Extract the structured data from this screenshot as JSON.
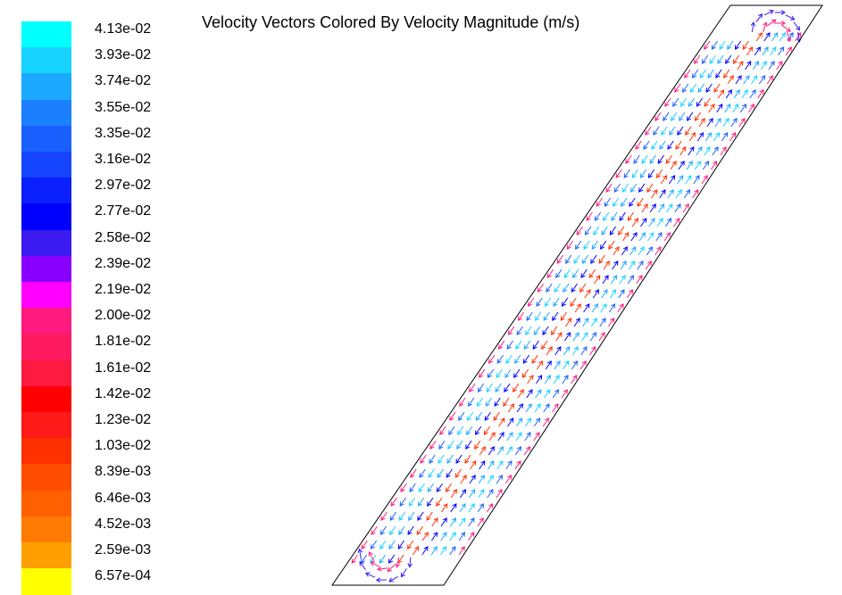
{
  "title": "Velocity Vectors Colored By Velocity Magnitude (m/s)",
  "colormap": {
    "labels": [
      "4.13e-02",
      "3.93e-02",
      "3.74e-02",
      "3.55e-02",
      "3.35e-02",
      "3.16e-02",
      "2.97e-02",
      "2.77e-02",
      "2.58e-02",
      "2.39e-02",
      "2.19e-02",
      "2.00e-02",
      "1.81e-02",
      "1.61e-02",
      "1.42e-02",
      "1.23e-02",
      "1.03e-02",
      "8.39e-03",
      "6.46e-03",
      "4.52e-03",
      "2.59e-03",
      "6.57e-04"
    ],
    "colors": [
      "#00ffff",
      "#17d3ff",
      "#1aa9ff",
      "#1a80ff",
      "#1a60ff",
      "#1545ff",
      "#0a20ff",
      "#0000ff",
      "#3a1af0",
      "#8a00ff",
      "#ff00ff",
      "#ff1a80",
      "#ff1a60",
      "#ff1a40",
      "#ff0000",
      "#ff1a1a",
      "#ff3000",
      "#ff4d00",
      "#ff6000",
      "#ff7a00",
      "#ffa000",
      "#ffff00"
    ]
  },
  "vector_field": {
    "magnitude_range": [
      "6.57e-04",
      "4.13e-02"
    ]
  }
}
